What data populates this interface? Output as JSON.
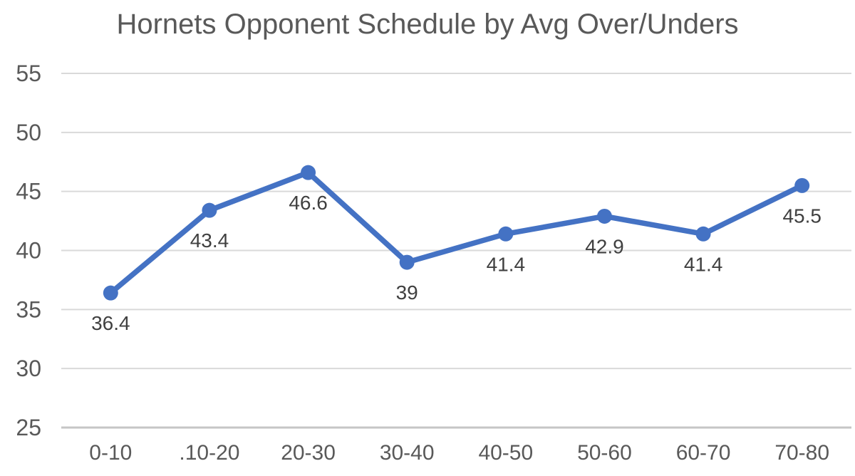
{
  "title": "Hornets Opponent Schedule by Avg Over/Unders",
  "colors": {
    "line": "#4472C4",
    "marker": "#4472C4",
    "gridline": "#D9D9D9",
    "axis_line": "#C6C6C6",
    "tick_label": "#595959",
    "data_label": "#404040",
    "title_text": "#595959",
    "background": "#FFFFFF"
  },
  "chart_data": {
    "type": "line",
    "title": "Hornets Opponent Schedule by Avg Over/Unders",
    "categories": [
      "0-10",
      ".10-20",
      "20-30",
      "30-40",
      "40-50",
      "50-60",
      "60-70",
      "70-80"
    ],
    "values": [
      36.4,
      43.4,
      46.6,
      39,
      41.4,
      42.9,
      41.4,
      45.5
    ],
    "data_labels": [
      "36.4",
      "43.4",
      "46.6",
      "39",
      "41.4",
      "42.9",
      "41.4",
      "45.5"
    ],
    "xlabel": "",
    "ylabel": "",
    "ylim": [
      25,
      55
    ],
    "yticks": [
      25,
      30,
      35,
      40,
      45,
      50,
      55
    ],
    "grid": true,
    "legend": false,
    "marker": "circle",
    "data_label_position": "below"
  }
}
